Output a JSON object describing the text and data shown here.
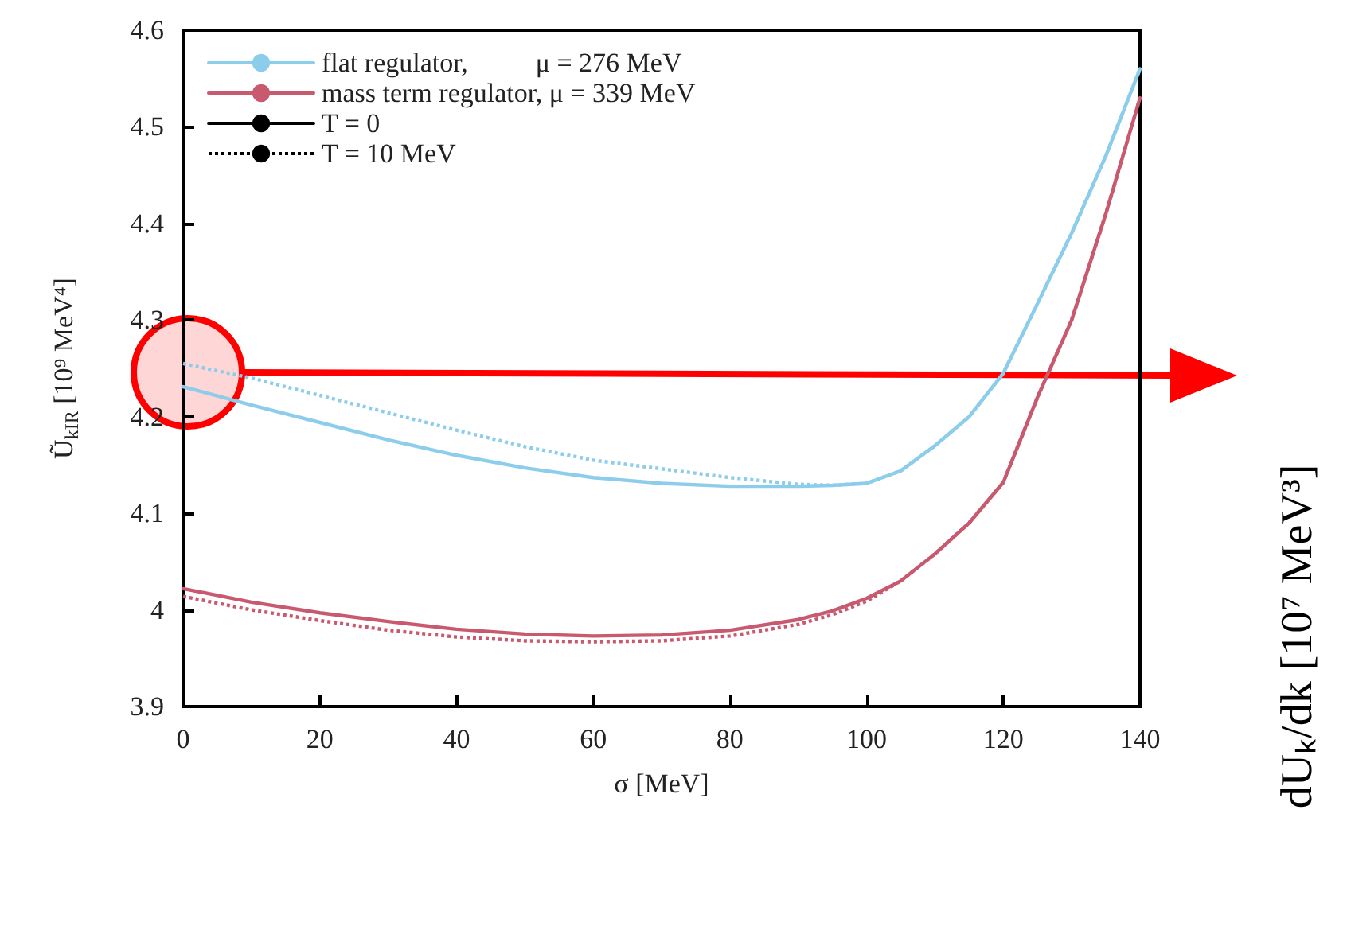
{
  "chart_data": {
    "type": "line",
    "xlabel": "σ [MeV]",
    "ylabel": "Ũ$_{kIR}$ [10⁹ MeV⁴]",
    "annotations": [
      "dUₖ/dk [10⁷ MeV³]"
    ],
    "x": [
      0,
      10,
      20,
      30,
      40,
      50,
      60,
      70,
      80,
      90,
      95,
      100,
      105,
      110,
      115,
      120,
      125,
      130,
      135,
      140
    ],
    "series": [
      {
        "name": "flat regulator,          μ = 276 MeV",
        "color": "#8ccdec",
        "line_style": "solid",
        "values": [
          4.231,
          4.212,
          4.194,
          4.176,
          4.16,
          4.147,
          4.137,
          4.131,
          4.128,
          4.128,
          4.129,
          4.131,
          4.144,
          4.17,
          4.2,
          4.245,
          4.317,
          4.39,
          4.47,
          4.56
        ]
      },
      {
        "color": "#8ccdec",
        "line_style": "dotted",
        "values": [
          4.255,
          4.24,
          4.222,
          4.204,
          4.186,
          4.169,
          4.155,
          4.146,
          4.137,
          4.13,
          4.129,
          4.131,
          4.144,
          4.17,
          4.2,
          4.245,
          4.317,
          4.39,
          4.47,
          4.56
        ]
      },
      {
        "name": "mass term regulator, μ = 339 MeV",
        "color": "#c8596e",
        "line_style": "solid",
        "values": [
          4.022,
          4.008,
          3.997,
          3.988,
          3.98,
          3.975,
          3.973,
          3.974,
          3.979,
          3.99,
          3.999,
          4.012,
          4.03,
          4.058,
          4.09,
          4.132,
          4.22,
          4.3,
          4.41,
          4.53
        ]
      },
      {
        "color": "#c8596e",
        "line_style": "dotted",
        "values": [
          4.014,
          4.0,
          3.989,
          3.979,
          3.972,
          3.968,
          3.967,
          3.968,
          3.973,
          3.985,
          3.995,
          4.009,
          4.03,
          4.058,
          4.09,
          4.132,
          4.22,
          4.3,
          4.41,
          4.53
        ]
      },
      {
        "name": "T = 0",
        "color": "#000000",
        "line_style": "solid",
        "values": [
          null,
          null,
          null,
          null,
          null,
          null,
          null,
          null,
          null,
          null,
          null,
          null,
          null,
          null,
          null,
          null,
          null,
          null,
          null,
          null
        ]
      },
      {
        "name": "T = 10 MeV",
        "color": "#000000",
        "line_style": "dotted",
        "values": [
          null,
          null,
          null,
          null,
          null,
          null,
          null,
          null,
          null,
          null,
          null,
          null,
          null,
          null,
          null,
          null,
          null,
          null,
          null,
          null
        ]
      }
    ],
    "xlim": [
      0,
      140
    ],
    "xticks": [
      0,
      20,
      40,
      60,
      80,
      100,
      120,
      140
    ],
    "ylim": [
      3.9,
      4.6
    ],
    "yticks": [
      3.9,
      4,
      4.1,
      4.2,
      4.3,
      4.4,
      4.5,
      4.6
    ],
    "grid": false,
    "legend": "top left",
    "marker": "none"
  }
}
